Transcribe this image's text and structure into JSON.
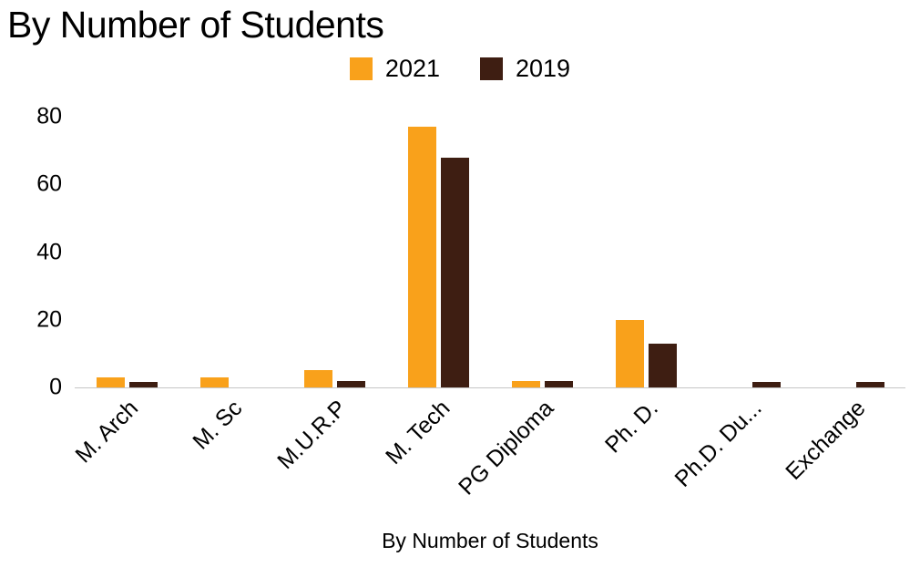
{
  "title": "By Number of Students",
  "legend": [
    {
      "label": "2021",
      "color": "#F9A11B"
    },
    {
      "label": "2019",
      "color": "#3E1E12"
    }
  ],
  "x_axis_title": "By Number of Students",
  "chart_data": {
    "type": "bar",
    "title": "By Number of Students",
    "categories": [
      "M. Arch",
      "M. Sc",
      "M.U.R.P",
      "M. Tech",
      "PG Diploma",
      "Ph. D.",
      "Ph.D. Du...",
      "Exchange"
    ],
    "series": [
      {
        "name": "2021",
        "color": "#F9A11B",
        "values": [
          3,
          3,
          5,
          77,
          2,
          20,
          0,
          0
        ]
      },
      {
        "name": "2019",
        "color": "#3E1E12",
        "values": [
          1.5,
          0,
          2,
          68,
          2,
          13,
          1.5,
          1.5
        ]
      }
    ],
    "xlabel": "By Number of Students",
    "ylabel": "",
    "ylim": [
      0,
      80
    ],
    "yticks": [
      0,
      20,
      40,
      60,
      80
    ],
    "grid": false,
    "legend_position": "top"
  }
}
